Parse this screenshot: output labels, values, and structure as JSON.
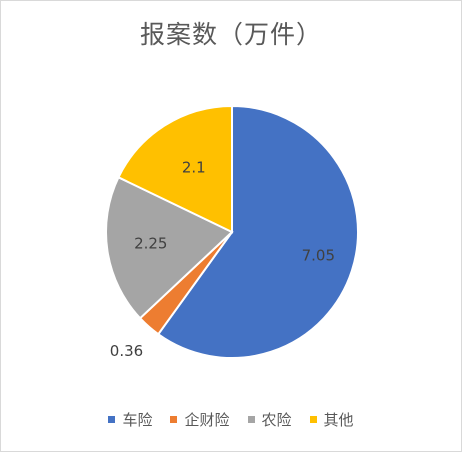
{
  "chart_data": {
    "type": "pie",
    "title": "报案数（万件）",
    "categories": [
      "车险",
      "企财险",
      "农险",
      "其他"
    ],
    "values": [
      7.05,
      0.36,
      2.25,
      2.1
    ],
    "value_labels": [
      "7.05",
      "0.36",
      "2.25",
      "2.1"
    ],
    "colors": [
      "#4472C4",
      "#ED7D31",
      "#A5A5A5",
      "#FFC000"
    ],
    "legend_position": "bottom"
  }
}
